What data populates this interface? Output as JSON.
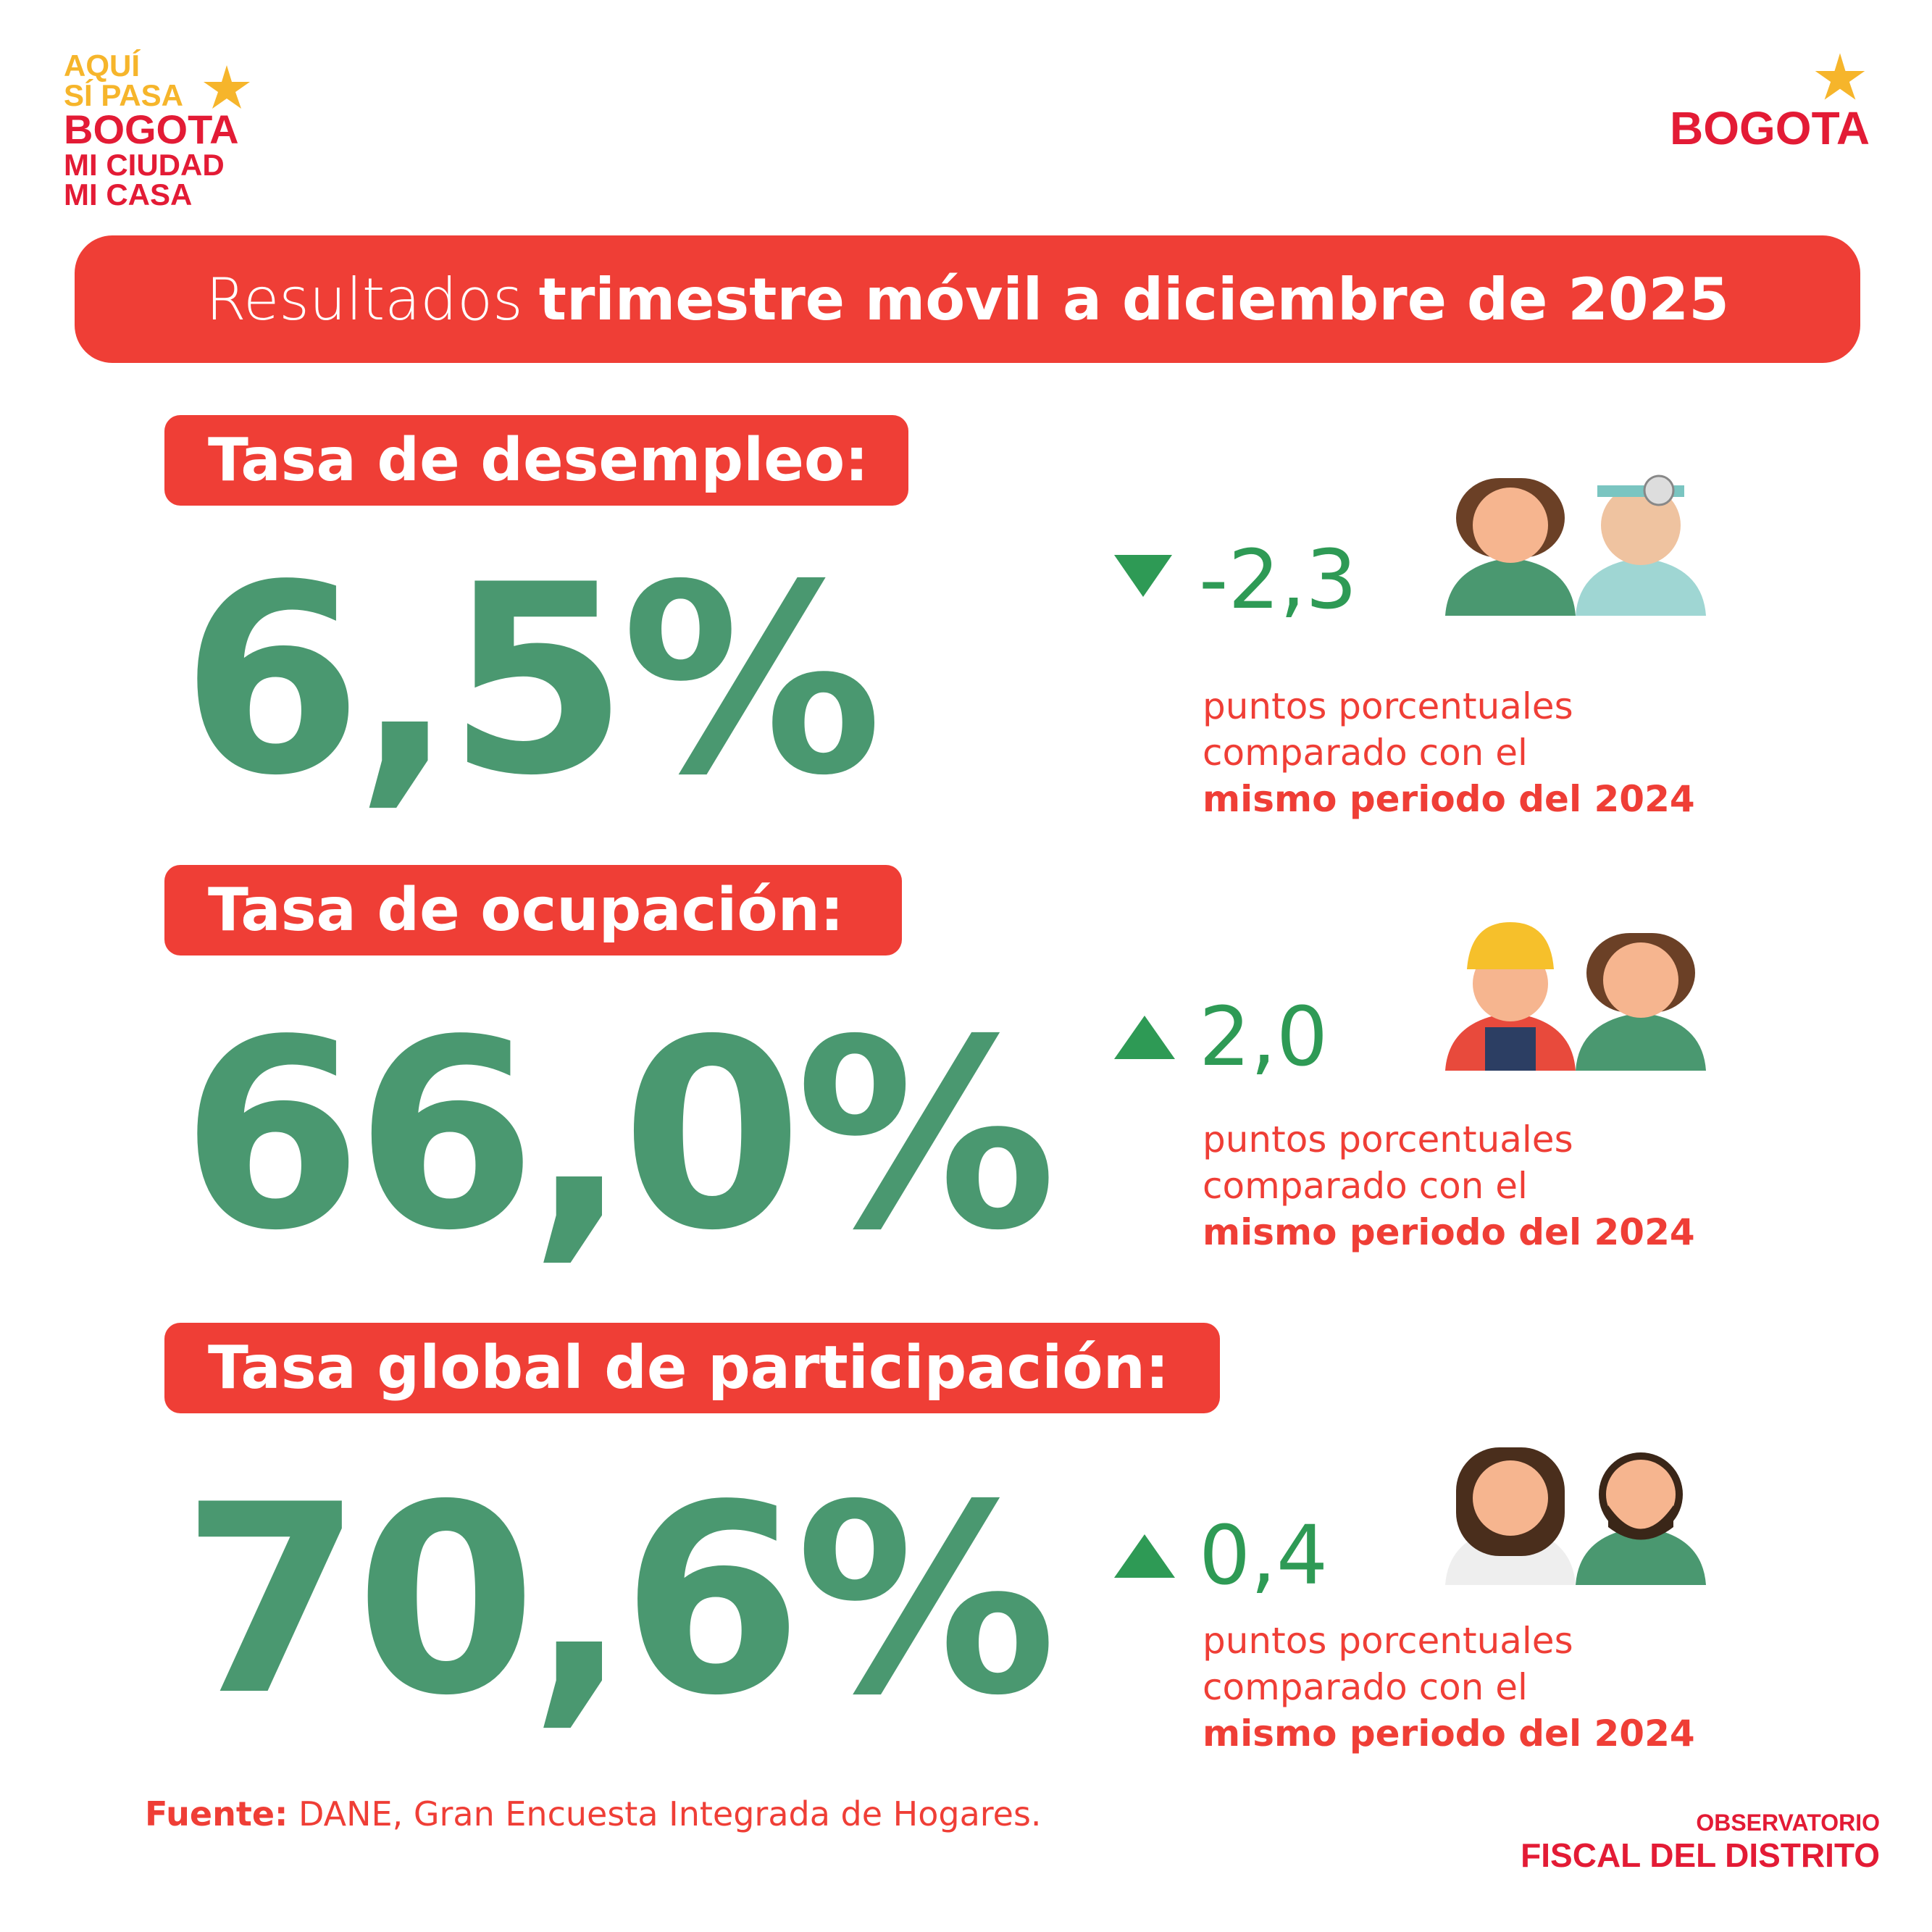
{
  "logo_left": {
    "line1": "AQUÍ",
    "line2": "SÍ PASA",
    "line3": "BOGOTA",
    "line4": "MI CIUDAD",
    "line5": "MI CASA"
  },
  "logo_right": {
    "text": "BOGOTA"
  },
  "header": {
    "title_light": "Resultados",
    "title_bold": "trimestre móvil a diciembre de 2025"
  },
  "indicators": [
    {
      "label": "Tasa de desempleo:",
      "value": "6,5%",
      "direction": "down",
      "delta": "-2,3",
      "note1": "puntos porcentuales",
      "note2": "comparado con el",
      "note3": "mismo periodo del 2024"
    },
    {
      "label": "Tasa de ocupación:",
      "value": "66,0%",
      "direction": "up",
      "delta": "2,0",
      "note1": "puntos porcentuales",
      "note2": "comparado con el",
      "note3": "mismo periodo del 2024"
    },
    {
      "label": "Tasa global de participación:",
      "value": "70,6%",
      "direction": "up",
      "delta": "0,4",
      "note1": "puntos porcentuales",
      "note2": "comparado con el",
      "note3": "mismo periodo del 2024"
    }
  ],
  "source": {
    "label": "Fuente:",
    "text": "DANE, Gran Encuesta Integrada de Hogares."
  },
  "footer_logo": {
    "line1": "OBSERVATORIO",
    "line2": "FISCAL DEL DISTRITO"
  },
  "colors": {
    "red": "#ef3e36",
    "green": "#4a9870",
    "arrow_green": "#2e9a55",
    "yellow": "#f6b52b"
  }
}
